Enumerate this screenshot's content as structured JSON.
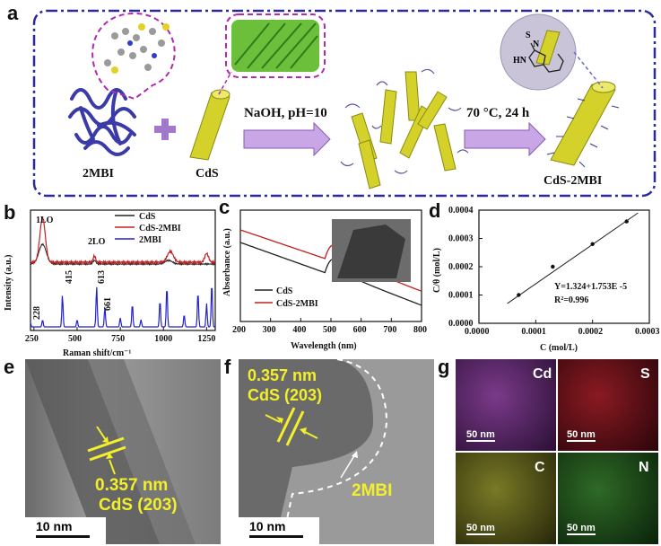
{
  "panel_labels": {
    "a": "a",
    "b": "b",
    "c": "c",
    "d": "d",
    "e": "e",
    "f": "f",
    "g": "g"
  },
  "schematic": {
    "mbi_label": "2MBI",
    "cds_label": "CdS",
    "step1": "NaOH, pH=10",
    "step2": "70 °C, 24 h",
    "product_label": "CdS-2MBI",
    "inset_s": "S",
    "inset_hn": "HN",
    "inset_n": "N"
  },
  "colors": {
    "frame": "#2a2aa0",
    "purple_dash": "#b02ab0",
    "yellow_rod": "#d4d22a",
    "arrow": "#c9a6e6",
    "raman_black": "#222222",
    "raman_red": "#c0201f",
    "raman_blue": "#2222c8"
  },
  "chart_data": [
    {
      "type": "line",
      "panel": "b",
      "xlabel": "Raman shift/cm⁻¹",
      "ylabel": "Intensity (a.u.)",
      "xlim": [
        230,
        1300
      ],
      "xticks": [
        250,
        500,
        750,
        1000,
        1250
      ],
      "series": [
        {
          "name": "CdS",
          "color": "#222222"
        },
        {
          "name": "CdS-2MBI",
          "color": "#c0201f"
        },
        {
          "name": "2MBI",
          "color": "#2222c8"
        }
      ],
      "annotations": [
        "1LO",
        "2LO",
        "228",
        "415",
        "613",
        "661"
      ]
    },
    {
      "type": "line",
      "panel": "c",
      "xlabel": "Wavelength (nm)",
      "ylabel": "Absorbance (a.u.)",
      "xlim": [
        200,
        800
      ],
      "xticks": [
        200,
        300,
        400,
        500,
        600,
        700,
        800
      ],
      "series": [
        {
          "name": "CdS",
          "color": "#222222"
        },
        {
          "name": "CdS-2MBI",
          "color": "#c0201f"
        }
      ]
    },
    {
      "type": "scatter",
      "panel": "d",
      "xlabel": "C (mol/L)",
      "ylabel": "C/θ (mol/L)",
      "xlim": [
        0,
        0.0003
      ],
      "ylim": [
        0,
        0.0004
      ],
      "xticks": [
        "0.0000",
        "0.0001",
        "0.0002",
        "0.0003"
      ],
      "yticks": [
        "0.0000",
        "0.0001",
        "0.0002",
        "0.0003",
        "0.0004"
      ],
      "x": [
        7e-05,
        0.00013,
        0.0002,
        0.00026
      ],
      "y": [
        0.0001,
        0.0002,
        0.00028,
        0.00036
      ],
      "fit_equation": "Y=1.324+1.753E -5",
      "r2_label": "R",
      "r2_sup": "2",
      "r2_value": "=0.996"
    }
  ],
  "tem": {
    "e_spacing": "0.357 nm",
    "e_plane": "CdS (203)",
    "e_scale": "10 nm",
    "f_spacing": "0.357 nm",
    "f_plane": "CdS (203)",
    "f_shell": "2MBI",
    "f_scale": "10 nm"
  },
  "eds": {
    "maps": [
      {
        "element": "Cd",
        "scale": "50 nm",
        "color": "#5a1f6a"
      },
      {
        "element": "S",
        "scale": "50 nm",
        "color": "#6a0f14"
      },
      {
        "element": "C",
        "scale": "50 nm",
        "color": "#5a5a1a"
      },
      {
        "element": "N",
        "scale": "50 nm",
        "color": "#1f4a1a"
      }
    ]
  }
}
